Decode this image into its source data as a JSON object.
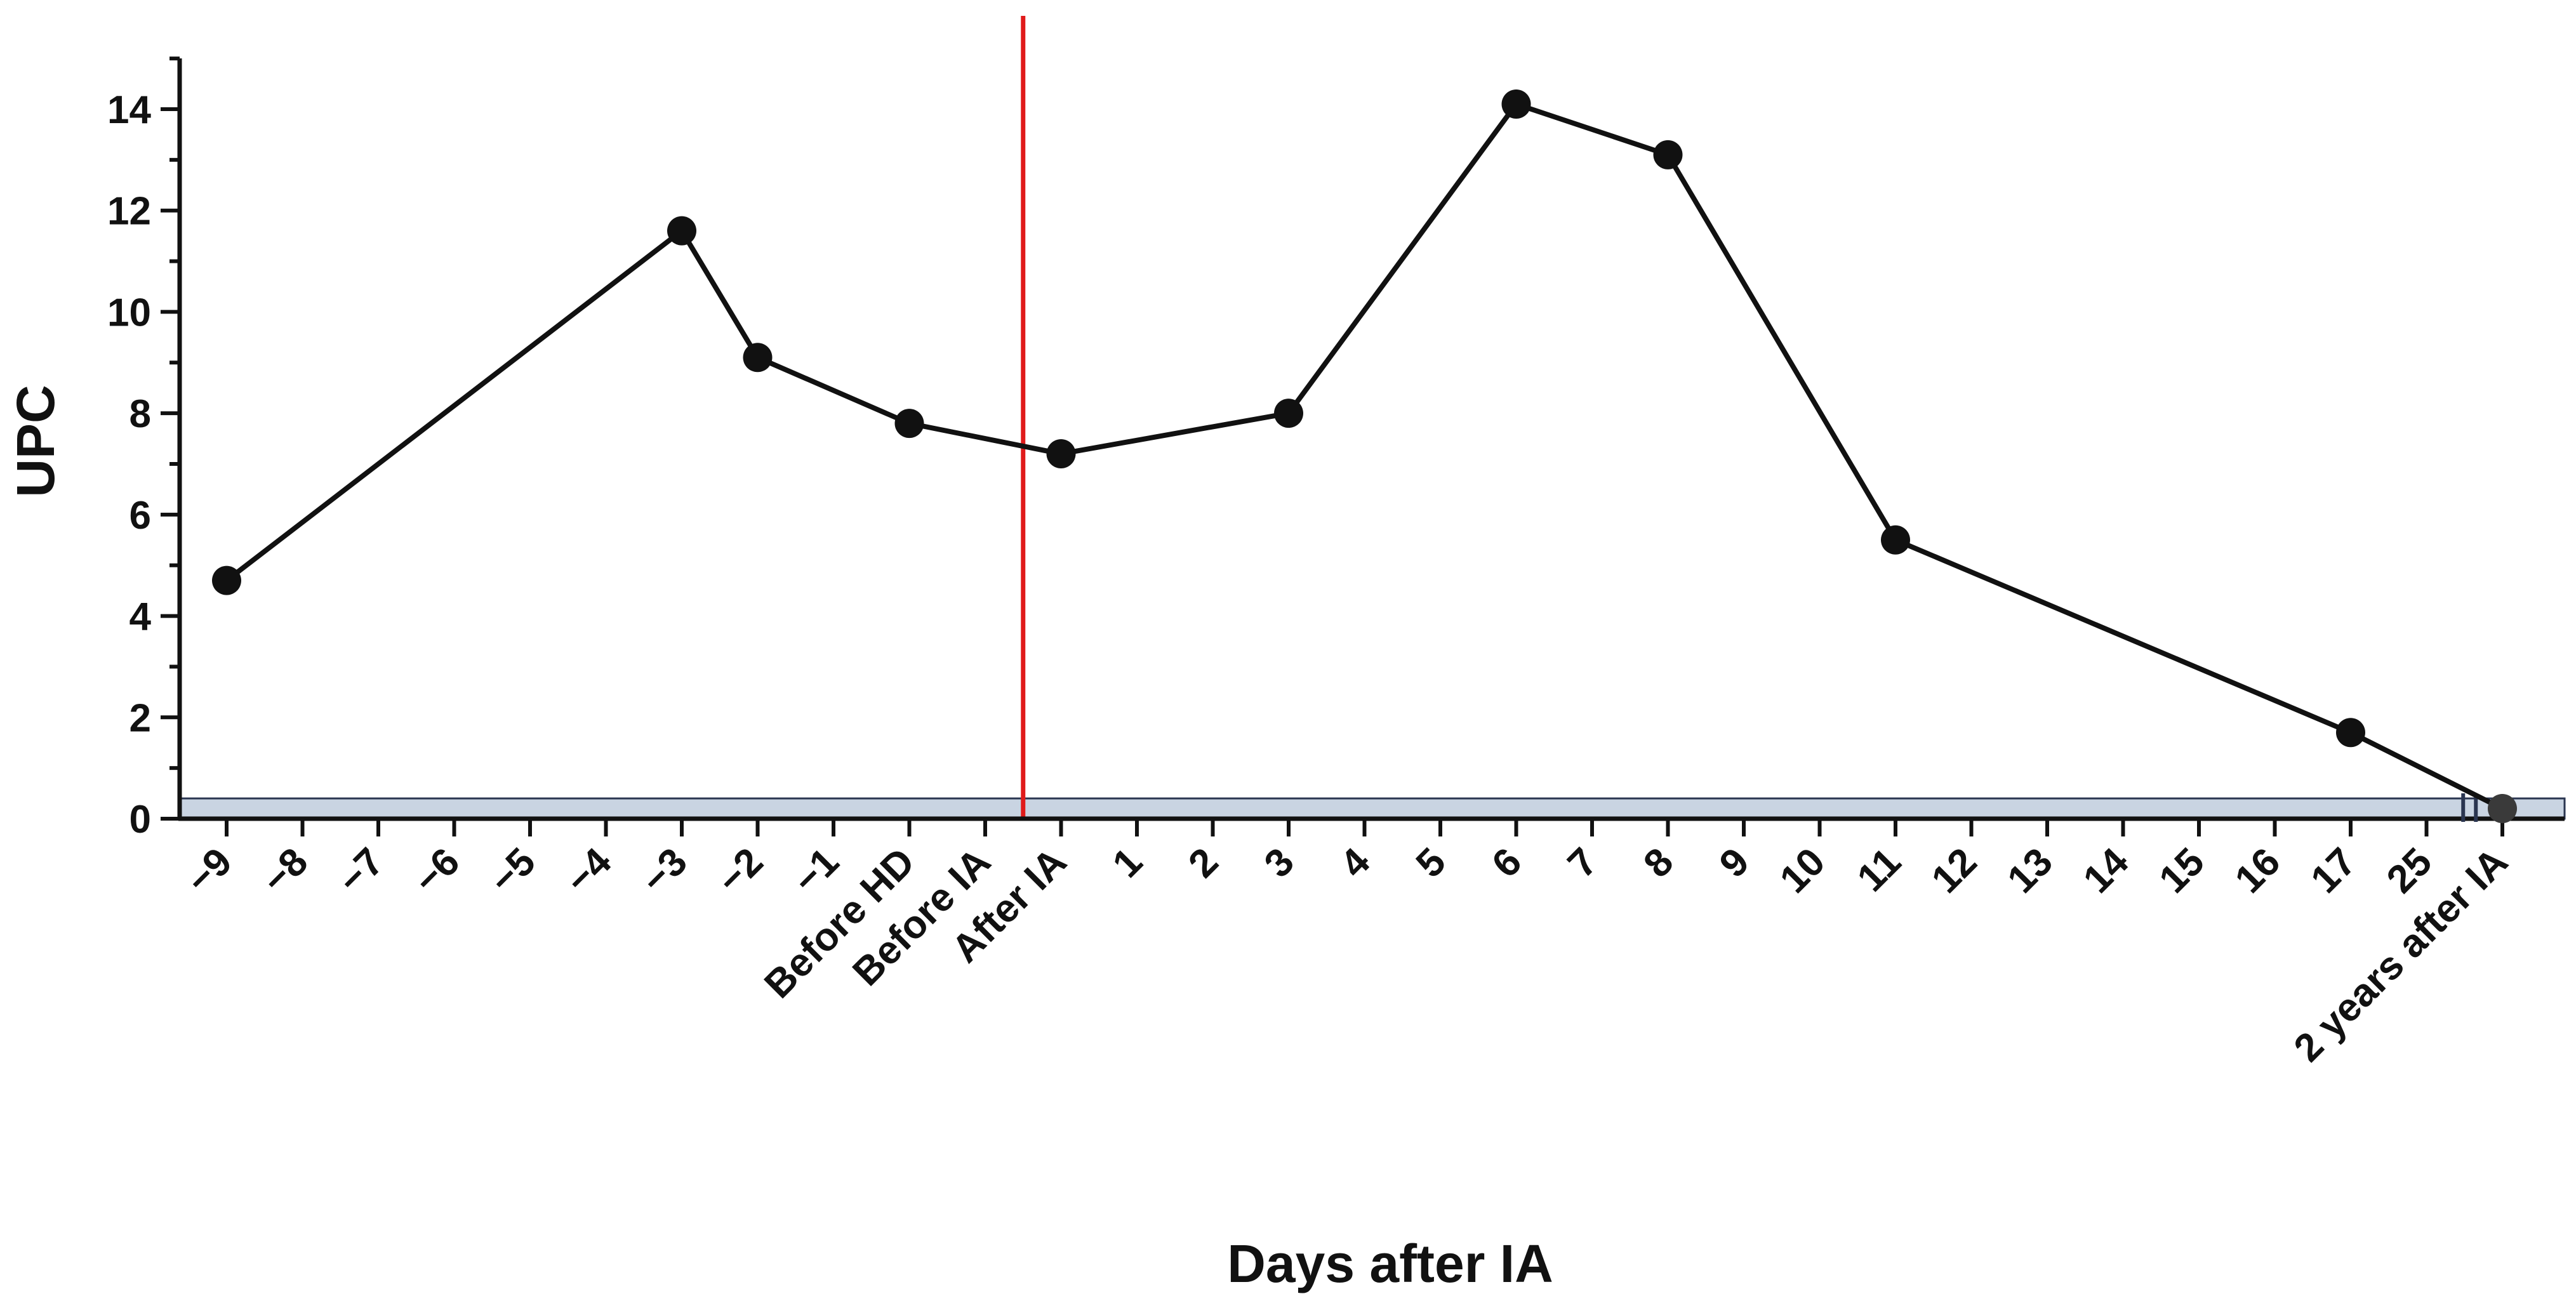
{
  "chart_data": {
    "type": "line",
    "title": "",
    "xlabel": "Days after IA",
    "ylabel": "UPC",
    "ylim": [
      0,
      15
    ],
    "yticks": [
      "0",
      "2",
      "4",
      "6",
      "8",
      "10",
      "12",
      "14"
    ],
    "categories": [
      "−9",
      "−8",
      "−7",
      "−6",
      "−5",
      "−4",
      "−3",
      "−2",
      "−1",
      "Before HD",
      "Before IA",
      "After IA",
      "1",
      "2",
      "3",
      "4",
      "5",
      "6",
      "7",
      "8",
      "9",
      "10",
      "11",
      "12",
      "13",
      "14",
      "15",
      "16",
      "17",
      "25",
      "2 years after IA"
    ],
    "series": [
      {
        "points": [
          {
            "x": "−9",
            "y": 4.7
          },
          {
            "x": "−3",
            "y": 11.6
          },
          {
            "x": "−2",
            "y": 9.1
          },
          {
            "x": "Before HD",
            "y": 7.8
          },
          {
            "x": "After IA",
            "y": 7.2
          },
          {
            "x": "3",
            "y": 8.0
          },
          {
            "x": "6",
            "y": 14.1
          },
          {
            "x": "8",
            "y": 13.1
          },
          {
            "x": "11",
            "y": 5.5
          },
          {
            "x": "17",
            "y": 1.7
          },
          {
            "x": "2 years after IA",
            "y": 0.2
          }
        ],
        "color": "#111111"
      }
    ],
    "reference_line": {
      "between": [
        "Before IA",
        "After IA"
      ],
      "color": "#e01b1b"
    },
    "reference_band": {
      "y_from": 0,
      "y_to": 0.4,
      "color": "#c9d4e2"
    },
    "axis_break": "between 25 and 2 years after IA",
    "grid": false,
    "legend": "none"
  }
}
